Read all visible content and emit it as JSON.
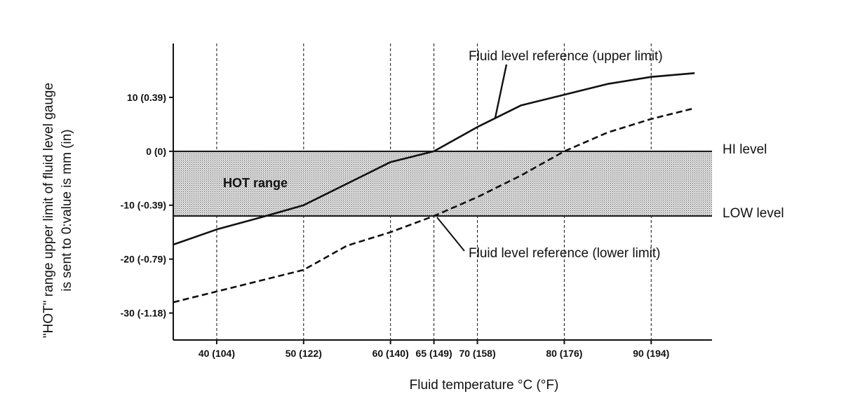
{
  "chart_data": {
    "type": "line",
    "title": "",
    "xlabel": "Fluid temperature °C (°F)",
    "ylabel_line1": "\"HOT\" range upper limit of fluid level gauge",
    "ylabel_line2": "is sent to 0:value is mm (in)",
    "xlim": [
      35,
      97
    ],
    "ylim": [
      -35,
      20
    ],
    "x_ticks": [
      {
        "value": 40,
        "label": "40 (104)"
      },
      {
        "value": 50,
        "label": "50 (122)"
      },
      {
        "value": 60,
        "label": "60 (140)"
      },
      {
        "value": 65,
        "label": "65 (149)"
      },
      {
        "value": 70,
        "label": "70 (158)"
      },
      {
        "value": 80,
        "label": "80 (176)"
      },
      {
        "value": 90,
        "label": "90 (194)"
      }
    ],
    "y_ticks": [
      {
        "value": 10,
        "label": "10 (0.39)"
      },
      {
        "value": 0,
        "label": "0 (0)"
      },
      {
        "value": -10,
        "label": "-10 (-0.39)"
      },
      {
        "value": -20,
        "label": "-20 (-0.79)"
      },
      {
        "value": -30,
        "label": "-30 (-1.18)"
      }
    ],
    "grid": "vertical dashed at x ticks",
    "band": {
      "label": "HOT range",
      "y_top": 0,
      "y_bottom": -12
    },
    "reference_lines": [
      {
        "label": "HI level",
        "value": 0
      },
      {
        "label": "LOW level",
        "value": -12
      }
    ],
    "series": [
      {
        "name": "Fluid level reference (upper limit)",
        "style": "solid",
        "x": [
          35,
          40,
          45,
          50,
          55,
          60,
          65,
          70,
          75,
          80,
          85,
          90,
          95
        ],
        "y": [
          -17.3,
          -14.5,
          -12.3,
          -10,
          -6,
          -2,
          0,
          4.5,
          8.5,
          10.5,
          12.5,
          13.8,
          14.5
        ]
      },
      {
        "name": "Fluid level reference (lower limit)",
        "style": "dashed",
        "x": [
          35,
          40,
          45,
          50,
          55,
          60,
          65,
          70,
          75,
          80,
          85,
          90,
          95
        ],
        "y": [
          -28,
          -26,
          -24,
          -22,
          -17.5,
          -15,
          -12,
          -8.5,
          -4.5,
          0,
          3.5,
          6,
          8
        ]
      }
    ],
    "annotations": [
      {
        "text": "Fluid level reference (upper limit)",
        "series": 0
      },
      {
        "text": "Fluid level reference (lower limit)",
        "series": 1
      }
    ],
    "colors": {
      "ink": "#111111",
      "band": "#c9c9c9"
    }
  }
}
